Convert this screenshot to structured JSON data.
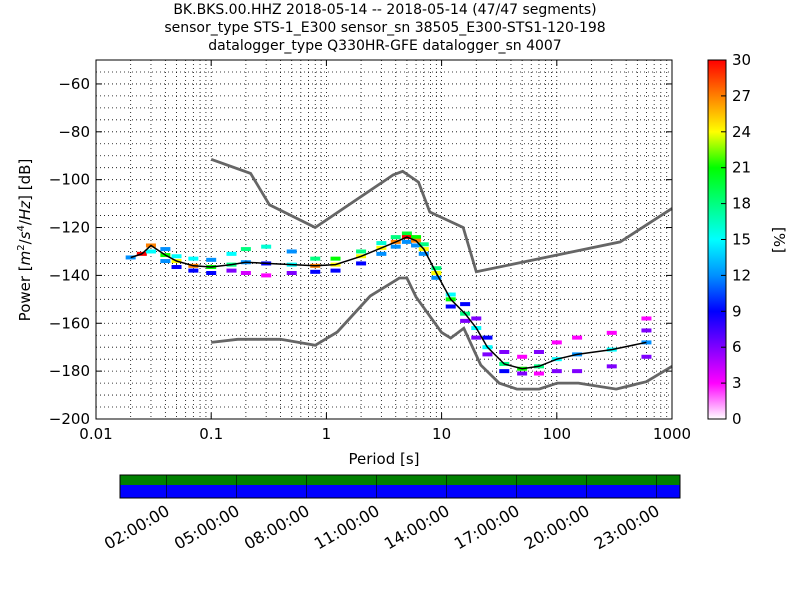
{
  "title": {
    "line1": "BK.BKS.00.HHZ   2018-05-14 -- 2018-05-14  (47/47 segments)",
    "line2": "sensor_type STS-1_E300 sensor_sn 38505_E300-STS1-120-198",
    "line3": "datalogger_type Q330HR-GFE datalogger_sn 4007"
  },
  "chart_data": [
    {
      "type": "heatmap",
      "xlabel": "Period [s]",
      "ylabel": "Power [m²/s⁴/Hz] [dB]",
      "ylabel_parts": {
        "prefix": "Power ",
        "m": "m",
        "s": "s",
        "hz": "Hz",
        "suffix": " [dB]",
        "exp_m": "2",
        "exp_s": "4"
      },
      "x_scale": "log",
      "xlim": [
        0.01,
        1000
      ],
      "ylim": [
        -200,
        -50
      ],
      "grid": "dotted",
      "x_ticks": [
        {
          "value": 0.01,
          "label": "0.01"
        },
        {
          "value": 0.1,
          "label": "0.1"
        },
        {
          "value": 1,
          "label": "1"
        },
        {
          "value": 10,
          "label": "10"
        },
        {
          "value": 100,
          "label": "100"
        },
        {
          "value": 1000,
          "label": "1000"
        }
      ],
      "y_ticks": [
        {
          "value": -60,
          "label": "−60"
        },
        {
          "value": -80,
          "label": "−80"
        },
        {
          "value": -100,
          "label": "−100"
        },
        {
          "value": -120,
          "label": "−120"
        },
        {
          "value": -140,
          "label": "−140"
        },
        {
          "value": -160,
          "label": "−160"
        },
        {
          "value": -180,
          "label": "−180"
        },
        {
          "value": -200,
          "label": "−200"
        }
      ],
      "nhnm": [
        [
          0.1,
          -91.5
        ],
        [
          0.22,
          -97.4
        ],
        [
          0.32,
          -110.5
        ],
        [
          0.8,
          -120
        ],
        [
          3.8,
          -98
        ],
        [
          4.6,
          -96.5
        ],
        [
          6.3,
          -101
        ],
        [
          7.9,
          -113.5
        ],
        [
          15.4,
          -120
        ],
        [
          20,
          -138.5
        ],
        [
          354.8,
          -126
        ],
        [
          1000,
          -112
        ]
      ],
      "nlnm": [
        [
          0.1,
          -168
        ],
        [
          0.17,
          -166.7
        ],
        [
          0.4,
          -166.7
        ],
        [
          0.8,
          -169.2
        ],
        [
          1.24,
          -163.7
        ],
        [
          2.4,
          -148.6
        ],
        [
          4.3,
          -141.1
        ],
        [
          5,
          -141.1
        ],
        [
          6,
          -149
        ],
        [
          10,
          -163.8
        ],
        [
          12,
          -166.2
        ],
        [
          15.6,
          -162.1
        ],
        [
          21.9,
          -177.5
        ],
        [
          31.6,
          -185
        ],
        [
          45,
          -187.5
        ],
        [
          70,
          -187.5
        ],
        [
          101,
          -185
        ],
        [
          154,
          -185
        ],
        [
          328,
          -187.5
        ],
        [
          600,
          -184.4
        ],
        [
          1000,
          -178
        ]
      ],
      "ppsd_mode": [
        [
          0.02,
          -132.5
        ],
        [
          0.025,
          -131
        ],
        [
          0.03,
          -127.5
        ],
        [
          0.04,
          -131.5
        ],
        [
          0.05,
          -134
        ],
        [
          0.07,
          -136
        ],
        [
          0.1,
          -136.5
        ],
        [
          0.15,
          -135.5
        ],
        [
          0.2,
          -134.5
        ],
        [
          0.3,
          -135
        ],
        [
          0.5,
          -135.5
        ],
        [
          0.8,
          -136
        ],
        [
          1.2,
          -135.5
        ],
        [
          2,
          -132
        ],
        [
          3,
          -128.5
        ],
        [
          4,
          -126
        ],
        [
          5,
          -124
        ],
        [
          6,
          -125.5
        ],
        [
          7,
          -129
        ],
        [
          9,
          -139
        ],
        [
          12,
          -150
        ],
        [
          16,
          -156
        ],
        [
          20,
          -162
        ],
        [
          25,
          -170
        ],
        [
          35,
          -177
        ],
        [
          50,
          -179
        ],
        [
          70,
          -178
        ],
        [
          100,
          -175
        ],
        [
          150,
          -173
        ],
        [
          300,
          -171
        ],
        [
          600,
          -168
        ]
      ],
      "ppsd_cells": [
        [
          0.02,
          -132.5,
          12
        ],
        [
          0.025,
          -131,
          30
        ],
        [
          0.03,
          -127.5,
          27
        ],
        [
          0.03,
          -130,
          15
        ],
        [
          0.04,
          -129,
          12
        ],
        [
          0.04,
          -131.5,
          21
        ],
        [
          0.04,
          -134,
          12
        ],
        [
          0.05,
          -132,
          15
        ],
        [
          0.05,
          -134,
          24
        ],
        [
          0.05,
          -136.5,
          9
        ],
        [
          0.07,
          -133,
          15
        ],
        [
          0.07,
          -136,
          27
        ],
        [
          0.07,
          -138,
          9
        ],
        [
          0.1,
          -133.5,
          12
        ],
        [
          0.1,
          -136.5,
          21
        ],
        [
          0.1,
          -139,
          9
        ],
        [
          0.15,
          -131,
          15
        ],
        [
          0.15,
          -135.5,
          18
        ],
        [
          0.15,
          -138,
          6
        ],
        [
          0.2,
          -129,
          18
        ],
        [
          0.2,
          -134.5,
          12
        ],
        [
          0.2,
          -139,
          4
        ],
        [
          0.3,
          -128,
          16
        ],
        [
          0.3,
          -135,
          9
        ],
        [
          0.3,
          -140,
          3
        ],
        [
          0.5,
          -130,
          12
        ],
        [
          0.5,
          -135.5,
          15
        ],
        [
          0.5,
          -139,
          6
        ],
        [
          0.8,
          -133,
          18
        ],
        [
          0.8,
          -136,
          27
        ],
        [
          0.8,
          -138.5,
          9
        ],
        [
          1.2,
          -133,
          21
        ],
        [
          1.2,
          -135.5,
          24
        ],
        [
          1.2,
          -138,
          9
        ],
        [
          2,
          -130,
          18
        ],
        [
          2,
          -132,
          24
        ],
        [
          2,
          -135,
          9
        ],
        [
          3,
          -126.5,
          16
        ],
        [
          3,
          -128.5,
          24
        ],
        [
          3,
          -131,
          12
        ],
        [
          4,
          -124,
          18
        ],
        [
          4,
          -126,
          27
        ],
        [
          4,
          -128,
          12
        ],
        [
          5,
          -122.5,
          20
        ],
        [
          5,
          -124,
          30
        ],
        [
          5,
          -126,
          12
        ],
        [
          6,
          -124,
          21
        ],
        [
          6,
          -125.5,
          27
        ],
        [
          6,
          -127.5,
          12
        ],
        [
          7,
          -127,
          18
        ],
        [
          7,
          -129,
          24
        ],
        [
          7,
          -131,
          12
        ],
        [
          9,
          -137,
          18
        ],
        [
          9,
          -139,
          24
        ],
        [
          9,
          -141,
          12
        ],
        [
          12,
          -148,
          15
        ],
        [
          12,
          -150,
          21
        ],
        [
          12,
          -153,
          9
        ],
        [
          16,
          -152,
          9
        ],
        [
          16,
          -156,
          18
        ],
        [
          16,
          -159,
          6
        ],
        [
          20,
          -158,
          6
        ],
        [
          20,
          -162,
          15
        ],
        [
          20,
          -166,
          6
        ],
        [
          25,
          -166,
          9
        ],
        [
          25,
          -170,
          15
        ],
        [
          25,
          -173,
          6
        ],
        [
          35,
          -172,
          6
        ],
        [
          35,
          -177,
          18
        ],
        [
          35,
          -180,
          9
        ],
        [
          50,
          -174,
          3
        ],
        [
          50,
          -179,
          21
        ],
        [
          50,
          -181,
          6
        ],
        [
          70,
          -172,
          6
        ],
        [
          70,
          -178,
          18
        ],
        [
          70,
          -181,
          3
        ],
        [
          100,
          -168,
          3
        ],
        [
          100,
          -175,
          15
        ],
        [
          100,
          -180,
          6
        ],
        [
          150,
          -166,
          3
        ],
        [
          150,
          -173,
          12
        ],
        [
          150,
          -180,
          6
        ],
        [
          300,
          -164,
          3
        ],
        [
          300,
          -171,
          15
        ],
        [
          300,
          -178,
          6
        ],
        [
          600,
          -158,
          3
        ],
        [
          600,
          -163,
          6
        ],
        [
          600,
          -168,
          12
        ],
        [
          600,
          -174,
          6
        ]
      ]
    },
    {
      "type": "colorbar",
      "label": "[%]",
      "range": [
        0,
        30
      ],
      "tick_labels": [
        "0",
        "3",
        "6",
        "9",
        "12",
        "15",
        "18",
        "21",
        "24",
        "27",
        "30"
      ],
      "colors": [
        "#ffffff",
        "#ff00ff",
        "#7f00ff",
        "#0000ff",
        "#0090ff",
        "#00ffff",
        "#00ff80",
        "#00ff00",
        "#ffff00",
        "#ff8000",
        "#ff0000"
      ]
    },
    {
      "type": "timeline",
      "tick_labels": [
        "02:00:00",
        "05:00:00",
        "08:00:00",
        "11:00:00",
        "14:00:00",
        "17:00:00",
        "20:00:00",
        "23:00:00"
      ],
      "tick_hours": [
        2,
        5,
        8,
        11,
        14,
        17,
        20,
        23
      ],
      "hours_span": [
        0,
        24
      ],
      "top_band_color": "#008000",
      "bottom_band_color": "#0000ff"
    }
  ]
}
